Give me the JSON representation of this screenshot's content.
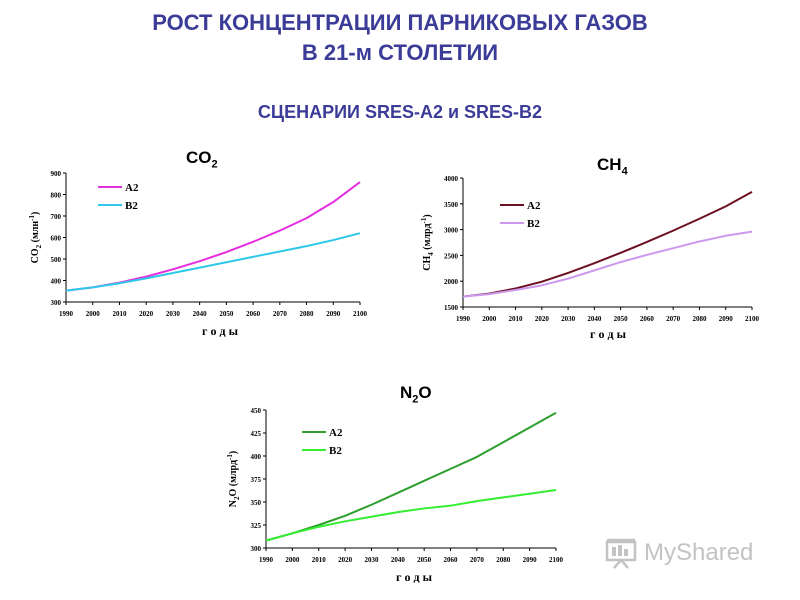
{
  "header": {
    "title_line1": "РОСТ КОНЦЕНТРАЦИИ ПАРНИКОВЫХ ГАЗОВ",
    "title_line2": "В 21-м СТОЛЕТИИ",
    "subtitle": "СЦЕНАРИИ SRES-A2 и SRES-B2"
  },
  "watermark": {
    "brand": "MyShared",
    "brand_sub": ""
  },
  "colors": {
    "co2_a2": "#e52ee0",
    "co2_b2": "#2ec9e8",
    "ch4_a2": "#6b1020",
    "ch4_b2": "#cc99ee",
    "n2o_a2": "#2e9e2e",
    "n2o_b2": "#33ee33"
  },
  "chart_data": [
    {
      "id": "co2",
      "type": "line",
      "title": "CO",
      "title_sub": "2",
      "xlabel": "г о д ы",
      "ylabel_main": "CO",
      "ylabel_sub": "2",
      "ylabel_rest": " (млн",
      "ylabel_sup": "-1",
      "ylabel_end": ")",
      "x": [
        1990,
        2000,
        2010,
        2020,
        2030,
        2040,
        2050,
        2060,
        2070,
        2080,
        2090,
        2100
      ],
      "xticks": [
        "1990",
        "2000",
        "2010",
        "2020",
        "2030",
        "2040",
        "2050",
        "2060",
        "2070",
        "2080",
        "2090",
        "2100"
      ],
      "ylim": [
        300,
        900
      ],
      "yticks": [
        "300",
        "400",
        "500",
        "600",
        "700",
        "800",
        "900"
      ],
      "legend_position": "top-left",
      "grid": false,
      "series": [
        {
          "name": "A2",
          "values": [
            353,
            368,
            390,
            418,
            452,
            490,
            532,
            580,
            632,
            690,
            765,
            858
          ]
        },
        {
          "name": "B2",
          "values": [
            353,
            368,
            387,
            410,
            435,
            460,
            485,
            510,
            535,
            560,
            588,
            620
          ]
        }
      ]
    },
    {
      "id": "ch4",
      "type": "line",
      "title": "CH",
      "title_sub": "4",
      "xlabel": "г о д ы",
      "ylabel_main": "CH",
      "ylabel_sub": "4",
      "ylabel_rest": " (млрд",
      "ylabel_sup": "-1",
      "ylabel_end": ")",
      "x": [
        1990,
        2000,
        2010,
        2020,
        2030,
        2040,
        2050,
        2060,
        2070,
        2080,
        2090,
        2100
      ],
      "xticks": [
        "1990",
        "2000",
        "2010",
        "2020",
        "2030",
        "2040",
        "2050",
        "2060",
        "2070",
        "2080",
        "2090",
        "2100"
      ],
      "ylim": [
        1500,
        4000
      ],
      "yticks": [
        "1500",
        "2000",
        "2500",
        "3000",
        "3500",
        "4000"
      ],
      "legend_position": "top-left",
      "grid": false,
      "series": [
        {
          "name": "A2",
          "values": [
            1700,
            1760,
            1860,
            1990,
            2160,
            2350,
            2550,
            2760,
            2980,
            3210,
            3450,
            3730
          ]
        },
        {
          "name": "B2",
          "values": [
            1700,
            1750,
            1830,
            1920,
            2050,
            2210,
            2370,
            2510,
            2640,
            2770,
            2880,
            2960
          ]
        }
      ]
    },
    {
      "id": "n2o",
      "type": "line",
      "title": "N",
      "title_sub": "2",
      "title_end": "O",
      "xlabel": "г о д ы",
      "ylabel_main": "N",
      "ylabel_sub": "2",
      "ylabel_rest": "O (млрд",
      "ylabel_sup": "-1",
      "ylabel_end": ")",
      "x": [
        1990,
        2000,
        2010,
        2020,
        2030,
        2040,
        2050,
        2060,
        2070,
        2080,
        2090,
        2100
      ],
      "xticks": [
        "1990",
        "2000",
        "2010",
        "2020",
        "2030",
        "2040",
        "2050",
        "2060",
        "2070",
        "2080",
        "2090",
        "2100"
      ],
      "ylim": [
        300,
        450
      ],
      "yticks": [
        "300",
        "325",
        "350",
        "375",
        "400",
        "425",
        "450"
      ],
      "legend_position": "top-left",
      "grid": false,
      "series": [
        {
          "name": "A2",
          "values": [
            308,
            316,
            325,
            335,
            347,
            360,
            373,
            386,
            399,
            415,
            431,
            447
          ]
        },
        {
          "name": "B2",
          "values": [
            308,
            316,
            323,
            329,
            334,
            339,
            343,
            346,
            351,
            355,
            359,
            363
          ]
        }
      ]
    }
  ]
}
